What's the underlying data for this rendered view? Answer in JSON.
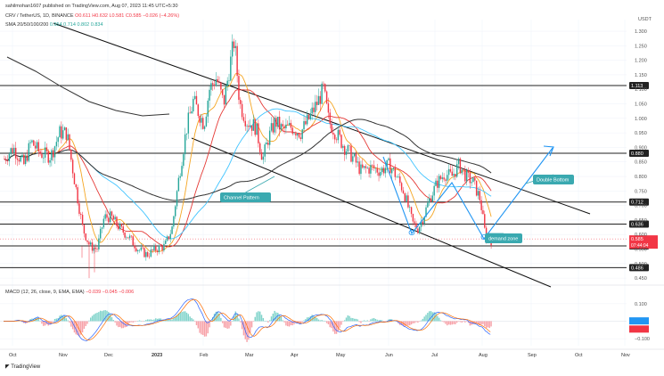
{
  "header": {
    "publisher": "sahilmohan1607 published on TradingView.com, Aug 07, 2023 11:45 UTC+5:30",
    "symbol": "CRV / TetherUS, 1D, BINANCE",
    "ohlc": "O0.611 H0.632 L0.581 C0.585 −0.026 (−4.26%)",
    "sma_label": "SMA 20/50/100/200",
    "sma_values": "0.654 0.714 0.802 0.834",
    "macd_label": "MACD (12, 26, close, 9, EMA, EMA)",
    "macd_values": "−0.039 −0.045 −0.006",
    "currency": "USDT",
    "tradingview_logo": "TradingView"
  },
  "colors": {
    "up": "#26a69a",
    "down": "#f23645",
    "sma20": "#f5a623",
    "sma50": "#e53935",
    "sma100": "#40c4ff",
    "sma200": "#333333",
    "annotation": "#2196f3",
    "callout": "#3aa9b0"
  },
  "annotations": {
    "channel_label": "Channel Pattern",
    "double_bottom_label": "Double Bottom",
    "demand_label": "demand zone"
  },
  "chart_data": {
    "type": "candlestick",
    "x_labels": [
      "Oct",
      "Nov",
      "Dec",
      "2023",
      "Feb",
      "Mar",
      "Apr",
      "May",
      "Jun",
      "Jul",
      "Aug",
      "Sep",
      "Oct",
      "Nov"
    ],
    "y_ticks": [
      1.3,
      1.25,
      1.2,
      1.15,
      1.1,
      1.05,
      1.0,
      0.95,
      0.9,
      0.85,
      0.8,
      0.75,
      0.7,
      0.65,
      0.6,
      0.55,
      0.5,
      0.45
    ],
    "ylim": [
      0.432,
      1.34
    ],
    "price_levels": [
      1.113,
      0.88,
      0.712,
      0.636,
      0.561,
      0.486
    ],
    "price_level_labels": [
      "1.113",
      "0.880",
      "0.712",
      "0.636",
      "0.561",
      "0.486"
    ],
    "current_price": "0.585",
    "countdown": "07:44:04",
    "macd": {
      "y_ticks": [
        0.1,
        0.0,
        -0.1
      ],
      "ylim": [
        -0.14,
        0.155
      ],
      "zero_label": "0.000",
      "top_label": "0.100",
      "bottom_label": "−0.100"
    }
  }
}
